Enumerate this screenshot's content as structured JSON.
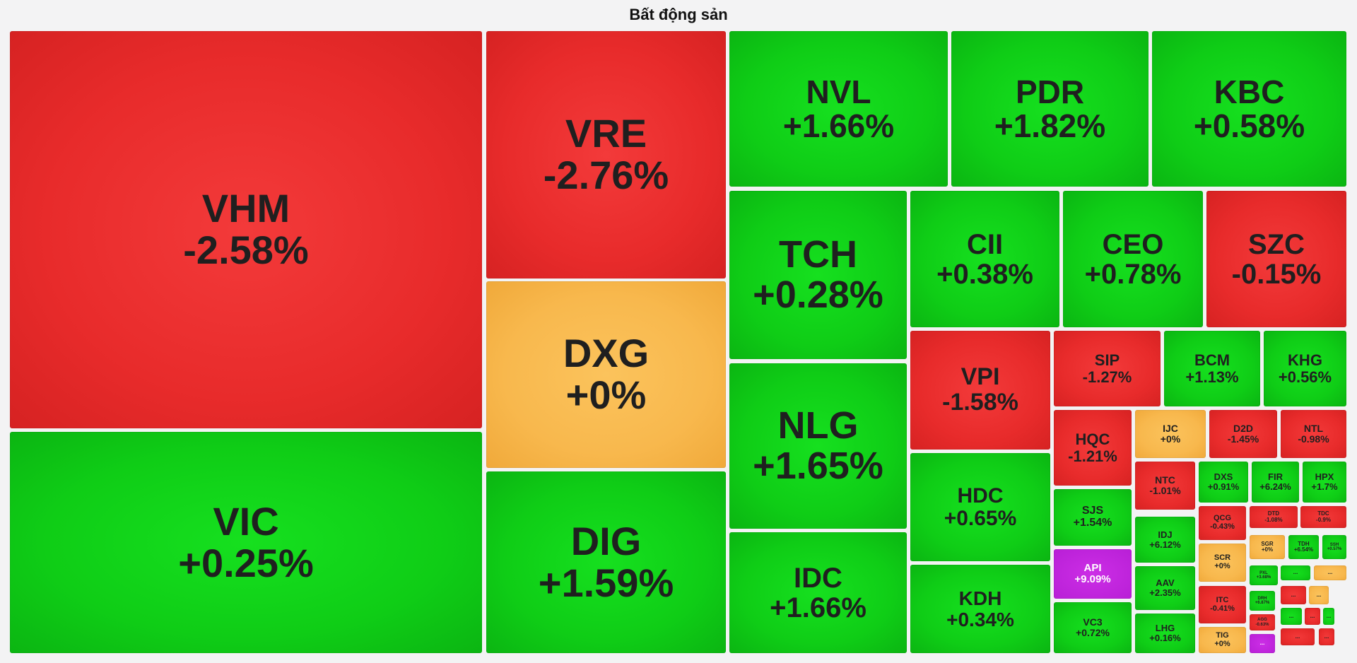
{
  "title": "Bất động sản",
  "chart_data": {
    "type": "treemap",
    "title": "Bất động sản",
    "tiles": [
      {
        "symbol": "VHM",
        "change": "-2.58%",
        "value": -2.58
      },
      {
        "symbol": "VIC",
        "change": "+0.25%",
        "value": 0.25
      },
      {
        "symbol": "VRE",
        "change": "-2.76%",
        "value": -2.76
      },
      {
        "symbol": "DXG",
        "change": "+0%",
        "value": 0
      },
      {
        "symbol": "DIG",
        "change": "+1.59%",
        "value": 1.59
      },
      {
        "symbol": "NVL",
        "change": "+1.66%",
        "value": 1.66
      },
      {
        "symbol": "PDR",
        "change": "+1.82%",
        "value": 1.82
      },
      {
        "symbol": "KBC",
        "change": "+0.58%",
        "value": 0.58
      },
      {
        "symbol": "TCH",
        "change": "+0.28%",
        "value": 0.28
      },
      {
        "symbol": "NLG",
        "change": "+1.65%",
        "value": 1.65
      },
      {
        "symbol": "IDC",
        "change": "+1.66%",
        "value": 1.66
      },
      {
        "symbol": "CII",
        "change": "+0.38%",
        "value": 0.38
      },
      {
        "symbol": "CEO",
        "change": "+0.78%",
        "value": 0.78
      },
      {
        "symbol": "SZC",
        "change": "-0.15%",
        "value": -0.15
      },
      {
        "symbol": "VPI",
        "change": "-1.58%",
        "value": -1.58
      },
      {
        "symbol": "SIP",
        "change": "-1.27%",
        "value": -1.27
      },
      {
        "symbol": "BCM",
        "change": "+1.13%",
        "value": 1.13
      },
      {
        "symbol": "KHG",
        "change": "+0.56%",
        "value": 0.56
      },
      {
        "symbol": "HDC",
        "change": "+0.65%",
        "value": 0.65
      },
      {
        "symbol": "KDH",
        "change": "+0.34%",
        "value": 0.34
      },
      {
        "symbol": "HQC",
        "change": "-1.21%",
        "value": -1.21
      },
      {
        "symbol": "SJS",
        "change": "+1.54%",
        "value": 1.54
      },
      {
        "symbol": "API",
        "change": "+9.09%",
        "value": 9.09
      },
      {
        "symbol": "VC3",
        "change": "+0.72%",
        "value": 0.72
      },
      {
        "symbol": "IJC",
        "change": "+0%",
        "value": 0
      },
      {
        "symbol": "D2D",
        "change": "-1.45%",
        "value": -1.45
      },
      {
        "symbol": "NTL",
        "change": "-0.98%",
        "value": -0.98
      },
      {
        "symbol": "NTC",
        "change": "-1.01%",
        "value": -1.01
      },
      {
        "symbol": "IDJ",
        "change": "+6.12%",
        "value": 6.12
      },
      {
        "symbol": "AAV",
        "change": "+2.35%",
        "value": 2.35
      },
      {
        "symbol": "LHG",
        "change": "+0.16%",
        "value": 0.16
      },
      {
        "symbol": "DXS",
        "change": "+0.91%",
        "value": 0.91
      },
      {
        "symbol": "FIR",
        "change": "+6.24%",
        "value": 6.24
      },
      {
        "symbol": "HPX",
        "change": "+1.7%",
        "value": 1.7
      },
      {
        "symbol": "QCG",
        "change": "-0.43%",
        "value": -0.43
      },
      {
        "symbol": "DTD",
        "change": "-1.08%",
        "value": -1.08
      },
      {
        "symbol": "TDC",
        "change": "-0.9%",
        "value": -0.9
      },
      {
        "symbol": "SCR",
        "change": "+0%",
        "value": 0
      },
      {
        "symbol": "SGR",
        "change": "+0%",
        "value": 0
      },
      {
        "symbol": "TDH",
        "change": "+6.54%",
        "value": 6.54
      },
      {
        "symbol": "SSH",
        "change": "+0.57%",
        "value": 0.57
      },
      {
        "symbol": "PXL",
        "change": "+3.68%",
        "value": 3.68
      },
      {
        "symbol": "ITC",
        "change": "-0.41%",
        "value": -0.41
      },
      {
        "symbol": "DRH",
        "change": "+6.87%",
        "value": 6.87
      },
      {
        "symbol": "AGG",
        "change": "-0.63%",
        "value": -0.63
      },
      {
        "symbol": "TIG",
        "change": "+0%",
        "value": 0
      },
      {
        "symbol": "...",
        "change": "",
        "value": 0.5
      },
      {
        "symbol": "...",
        "change": "",
        "value": 0
      },
      {
        "symbol": "...",
        "change": "",
        "value": 6.9
      },
      {
        "symbol": "...",
        "change": "",
        "value": -1
      },
      {
        "symbol": "...",
        "change": "",
        "value": 0
      },
      {
        "symbol": "...",
        "change": "",
        "value": 1
      },
      {
        "symbol": "...",
        "change": "",
        "value": -1
      },
      {
        "symbol": "...",
        "change": "",
        "value": 1
      },
      {
        "symbol": "...",
        "change": "",
        "value": -1
      },
      {
        "symbol": "...",
        "change": "",
        "value": -1
      }
    ]
  }
}
